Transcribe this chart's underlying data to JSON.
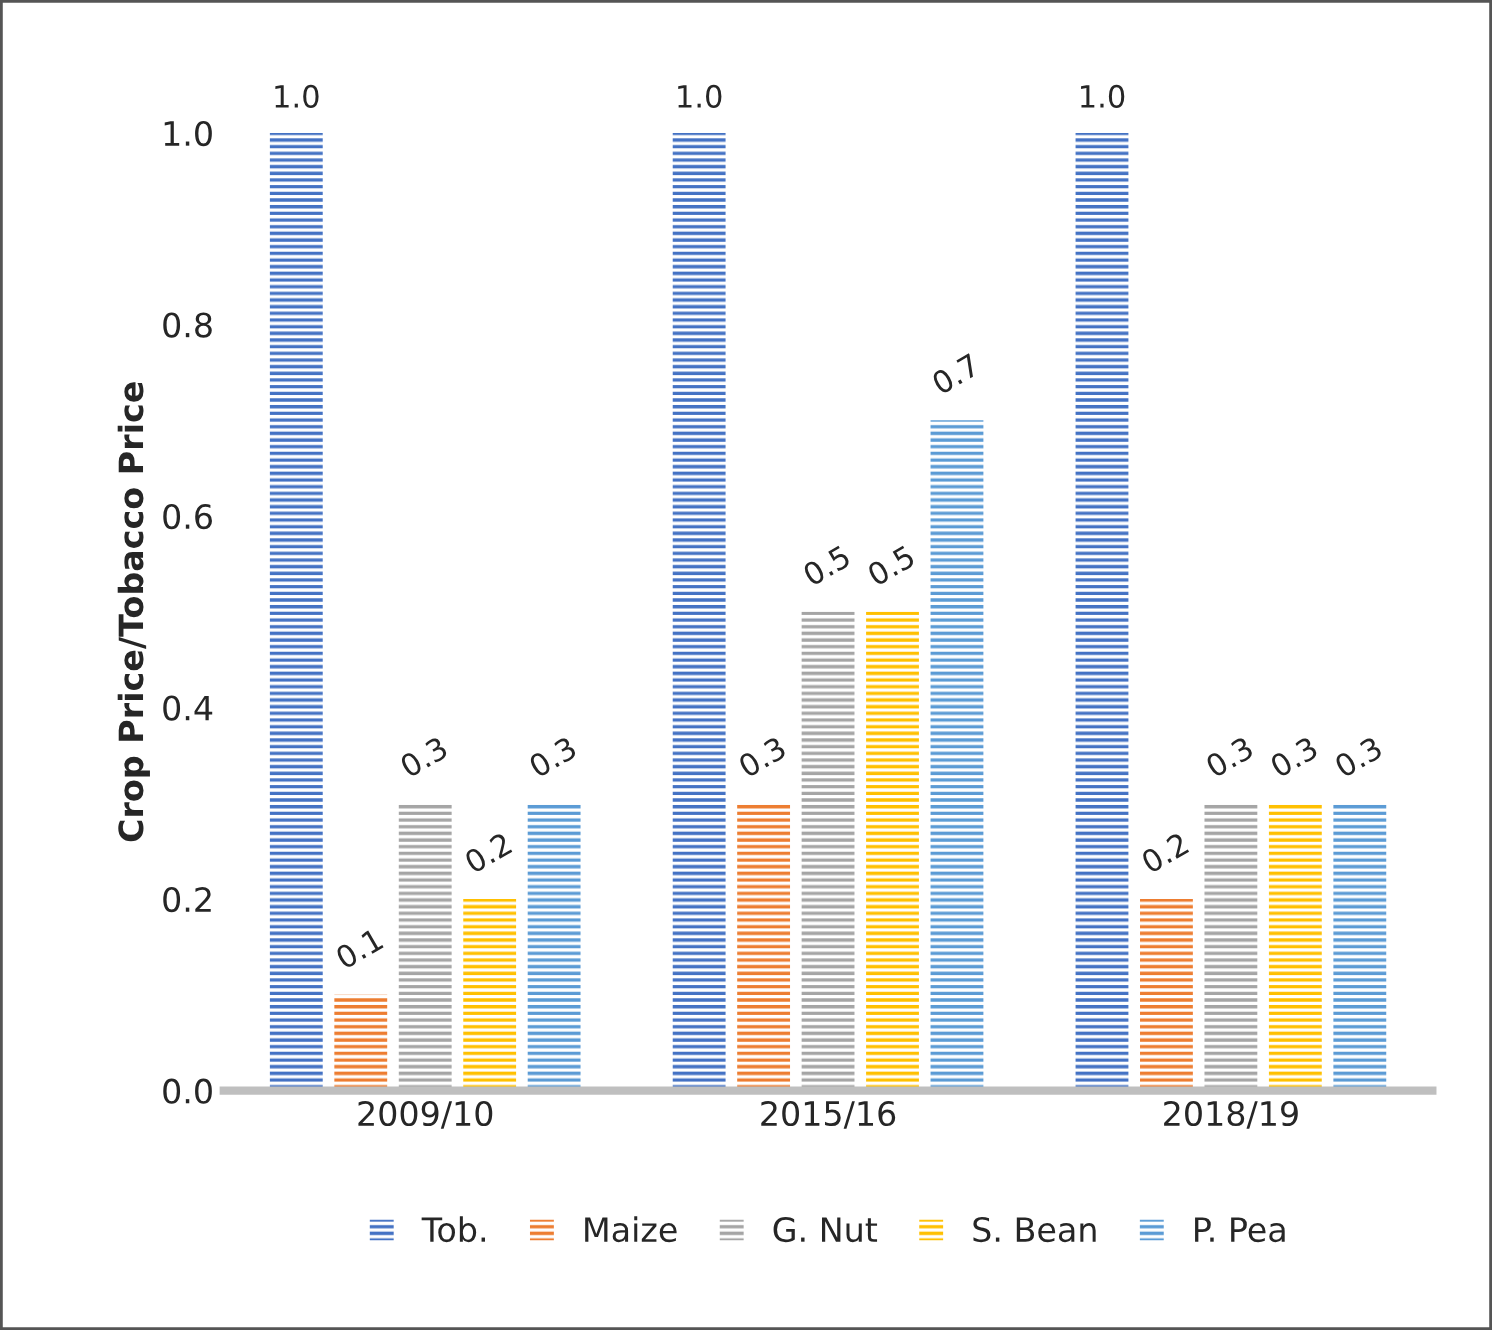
{
  "chart_data": {
    "type": "bar",
    "ylabel": "Crop Price/Tobacco Price",
    "categories": [
      "2009/10",
      "2015/16",
      "2018/19"
    ],
    "series": [
      {
        "name": "Tob.",
        "color": "#4472c4",
        "values": [
          1.0,
          1.0,
          1.0
        ],
        "value_labels": [
          "1.0",
          "1.0",
          "1.0"
        ]
      },
      {
        "name": "Maize",
        "color": "#ed7d31",
        "values": [
          0.1,
          0.3,
          0.2
        ],
        "value_labels": [
          "0.1",
          "0.3",
          "0.2"
        ]
      },
      {
        "name": "G. Nut",
        "color": "#a5a5a5",
        "values": [
          0.3,
          0.5,
          0.3
        ],
        "value_labels": [
          "0.3",
          "0.5",
          "0.3"
        ]
      },
      {
        "name": "S. Bean",
        "color": "#ffc000",
        "values": [
          0.2,
          0.5,
          0.3
        ],
        "value_labels": [
          "0.2",
          "0.5",
          "0.3"
        ]
      },
      {
        "name": "P. Pea",
        "color": "#5b9bd5",
        "values": [
          0.3,
          0.7,
          0.3
        ],
        "value_labels": [
          "0.3",
          "0.7",
          "0.3"
        ]
      }
    ],
    "ylim": [
      0,
      1.0
    ],
    "yticks": [
      {
        "value": 0,
        "label": "0.0"
      },
      {
        "value": 0.2,
        "label": "0.2"
      },
      {
        "value": 0.4,
        "label": "0.4"
      },
      {
        "value": 0.6,
        "label": "0.6"
      },
      {
        "value": 0.8,
        "label": "0.8"
      },
      {
        "value": 1.0,
        "label": "1.0"
      }
    ],
    "grid": false,
    "legend": "bottom"
  }
}
